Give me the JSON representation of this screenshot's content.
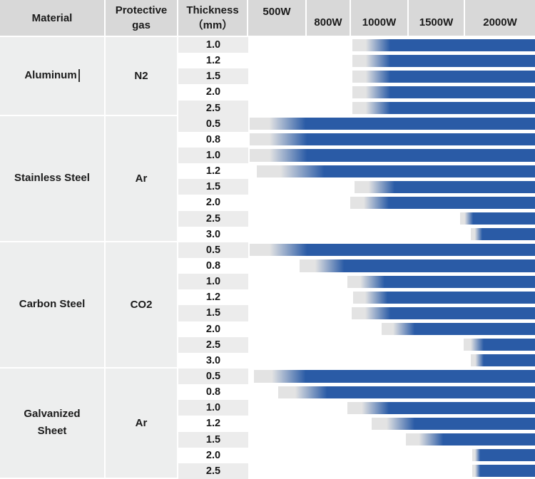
{
  "header": {
    "material": "Material",
    "gas_line1": "Protective",
    "gas_line2": "gas",
    "thickness_line1": "Thickness",
    "thickness_line2": "（mm）",
    "powers": [
      "500W",
      "800W",
      "1000W",
      "1500W",
      "2000W"
    ]
  },
  "text_cursor": {
    "visible": true,
    "after": "Aluminum"
  },
  "colors": {
    "bar": "#2a5ba6",
    "bar_lead": "#e3e3e3",
    "header_bg": "#d8d8d8",
    "group_cell_bg": "#edeeee",
    "stripe": "#ececec"
  },
  "chart_data": {
    "type": "bar",
    "orientation": "horizontal",
    "x_axis_labels": [
      "500W",
      "800W",
      "1000W",
      "1500W",
      "2000W"
    ],
    "bars_note": "Each bar shows the laser power range able to cut the given material thickness; fade_start_pct/solid_start_pct are positions (percent of power axis width from 500W edge to 2000W edge), all bars extend to 100%.",
    "groups": [
      {
        "material": "Aluminum",
        "gas": "N2",
        "rows": [
          {
            "thickness": "1.0",
            "fade_start": 36.3,
            "solid_start": 49.5
          },
          {
            "thickness": "1.2",
            "fade_start": 36.3,
            "solid_start": 49.5
          },
          {
            "thickness": "1.5",
            "fade_start": 36.3,
            "solid_start": 49.5
          },
          {
            "thickness": "2.0",
            "fade_start": 36.3,
            "solid_start": 49.5
          },
          {
            "thickness": "2.5",
            "fade_start": 36.3,
            "solid_start": 49.5
          }
        ]
      },
      {
        "material": "Stainless Steel",
        "gas": "Ar",
        "rows": [
          {
            "thickness": "0.5",
            "fade_start": 0.5,
            "solid_start": 20.0
          },
          {
            "thickness": "0.8",
            "fade_start": 0.5,
            "solid_start": 20.5
          },
          {
            "thickness": "1.0",
            "fade_start": 0.5,
            "solid_start": 20.5
          },
          {
            "thickness": "1.2",
            "fade_start": 3.0,
            "solid_start": 26.5
          },
          {
            "thickness": "1.5",
            "fade_start": 37.0,
            "solid_start": 51.0
          },
          {
            "thickness": "2.0",
            "fade_start": 35.5,
            "solid_start": 49.0
          },
          {
            "thickness": "2.5",
            "fade_start": 74.0,
            "solid_start": 78.5
          },
          {
            "thickness": "3.0",
            "fade_start": 77.5,
            "solid_start": 81.5
          }
        ]
      },
      {
        "material": "Carbon Steel",
        "gas": "CO2",
        "rows": [
          {
            "thickness": "0.5",
            "fade_start": 0.5,
            "solid_start": 20.5
          },
          {
            "thickness": "0.8",
            "fade_start": 18.0,
            "solid_start": 33.5
          },
          {
            "thickness": "1.0",
            "fade_start": 34.5,
            "solid_start": 47.5
          },
          {
            "thickness": "1.2",
            "fade_start": 36.5,
            "solid_start": 48.5
          },
          {
            "thickness": "1.5",
            "fade_start": 36.0,
            "solid_start": 49.5
          },
          {
            "thickness": "2.0",
            "fade_start": 46.5,
            "solid_start": 58.0
          },
          {
            "thickness": "2.5",
            "fade_start": 75.0,
            "solid_start": 82.0
          },
          {
            "thickness": "3.0",
            "fade_start": 77.5,
            "solid_start": 82.0
          }
        ]
      },
      {
        "material": "Galvanized\nSheet",
        "gas": "Ar",
        "rows": [
          {
            "thickness": "0.5",
            "fade_start": 2.0,
            "solid_start": 20.0
          },
          {
            "thickness": "0.8",
            "fade_start": 10.5,
            "solid_start": 27.5
          },
          {
            "thickness": "1.0",
            "fade_start": 34.5,
            "solid_start": 49.0
          },
          {
            "thickness": "1.2",
            "fade_start": 43.0,
            "solid_start": 58.0
          },
          {
            "thickness": "1.5",
            "fade_start": 55.0,
            "solid_start": 68.0
          },
          {
            "thickness": "2.0",
            "fade_start": 78.0,
            "solid_start": 80.8
          },
          {
            "thickness": "2.5",
            "fade_start": 78.0,
            "solid_start": 80.8
          }
        ]
      }
    ]
  }
}
